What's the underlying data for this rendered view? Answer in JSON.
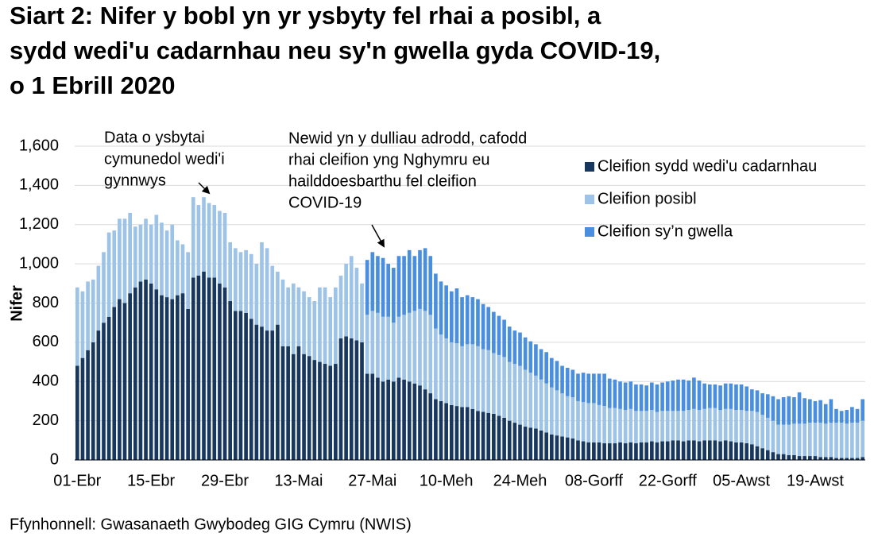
{
  "chart_data": {
    "type": "stacked-bar",
    "title": [
      "Siart 2: Nifer y bobl yn yr ysbyty fel rhai a posibl, a",
      "sydd wedi'u cadarnhau neu sy'n gwella gyda COVID-19,",
      "o 1 Ebrill 2020"
    ],
    "y_label": "Nifer",
    "source": "Ffynhonnell: Gwasanaeth Gwybodeg GIG Cymru (NWIS)",
    "annotations": [
      {
        "lines": [
          "Data o ysbytai",
          "cymunedol wedi'i",
          "gynnwys"
        ]
      },
      {
        "lines": [
          "Newid yn y dulliau adrodd, cafodd",
          "rhai cleifion yng Nghymru eu",
          "hailddoesbarthu fel cleifion",
          "COVID-19"
        ]
      }
    ],
    "categories": [
      "01-Ebr",
      null,
      null,
      null,
      null,
      null,
      null,
      null,
      null,
      null,
      null,
      null,
      null,
      null,
      "15-Ebr",
      null,
      null,
      null,
      null,
      null,
      null,
      null,
      null,
      null,
      null,
      null,
      null,
      null,
      "29-Ebr",
      null,
      null,
      null,
      null,
      null,
      null,
      null,
      null,
      null,
      null,
      null,
      null,
      null,
      "13-Mai",
      null,
      null,
      null,
      null,
      null,
      null,
      null,
      null,
      null,
      null,
      null,
      null,
      null,
      "27-Mai",
      null,
      null,
      null,
      null,
      null,
      null,
      null,
      null,
      null,
      null,
      null,
      null,
      null,
      "10-Meh",
      null,
      null,
      null,
      null,
      null,
      null,
      null,
      null,
      null,
      null,
      null,
      null,
      null,
      "24-Meh",
      null,
      null,
      null,
      null,
      null,
      null,
      null,
      null,
      null,
      null,
      null,
      null,
      null,
      "08-Gorff",
      null,
      null,
      null,
      null,
      null,
      null,
      null,
      null,
      null,
      null,
      null,
      null,
      null,
      "22-Gorff",
      null,
      null,
      null,
      null,
      null,
      null,
      null,
      null,
      null,
      null,
      null,
      null,
      null,
      "05-Awst",
      null,
      null,
      null,
      null,
      null,
      null,
      null,
      null,
      null,
      null,
      null,
      null,
      null,
      "19-Awst",
      null,
      null,
      null,
      null,
      null,
      null,
      null,
      null,
      null
    ],
    "series": [
      {
        "name": "Cleifion sydd wedi'u cadarnhau",
        "color": "#17375e",
        "values": [
          480,
          520,
          560,
          600,
          660,
          700,
          730,
          780,
          820,
          800,
          850,
          880,
          910,
          920,
          900,
          870,
          840,
          830,
          820,
          840,
          850,
          770,
          930,
          940,
          960,
          930,
          930,
          900,
          880,
          810,
          760,
          760,
          750,
          720,
          690,
          680,
          660,
          660,
          690,
          580,
          580,
          540,
          580,
          540,
          530,
          510,
          500,
          490,
          480,
          490,
          620,
          630,
          620,
          610,
          600,
          440,
          440,
          420,
          400,
          410,
          400,
          420,
          410,
          400,
          390,
          380,
          360,
          340,
          310,
          300,
          290,
          280,
          275,
          270,
          270,
          260,
          250,
          245,
          240,
          235,
          225,
          215,
          200,
          190,
          180,
          170,
          165,
          160,
          150,
          140,
          130,
          125,
          120,
          115,
          110,
          100,
          95,
          90,
          90,
          90,
          85,
          85,
          85,
          90,
          85,
          90,
          85,
          90,
          90,
          95,
          90,
          95,
          95,
          100,
          100,
          95,
          100,
          100,
          95,
          100,
          100,
          100,
          95,
          100,
          95,
          90,
          90,
          85,
          80,
          70,
          60,
          50,
          40,
          30,
          30,
          25,
          25,
          20,
          20,
          20,
          20,
          15,
          15,
          15,
          10,
          10,
          10,
          10,
          10,
          15
        ]
      },
      {
        "name": "Cleifion posibl",
        "color": "#9dc3e6",
        "values": [
          400,
          340,
          350,
          320,
          330,
          360,
          430,
          390,
          410,
          430,
          410,
          310,
          290,
          310,
          300,
          380,
          370,
          340,
          380,
          280,
          250,
          290,
          410,
          360,
          380,
          380,
          370,
          370,
          380,
          300,
          320,
          300,
          320,
          330,
          310,
          430,
          420,
          330,
          270,
          340,
          300,
          360,
          300,
          320,
          300,
          300,
          380,
          390,
          350,
          390,
          320,
          370,
          420,
          370,
          300,
          300,
          320,
          330,
          330,
          320,
          300,
          310,
          330,
          350,
          370,
          390,
          400,
          400,
          360,
          340,
          330,
          320,
          320,
          310,
          320,
          330,
          330,
          320,
          320,
          310,
          310,
          310,
          300,
          300,
          300,
          290,
          280,
          270,
          260,
          250,
          240,
          230,
          220,
          210,
          210,
          200,
          200,
          200,
          200,
          190,
          190,
          180,
          180,
          170,
          170,
          170,
          165,
          160,
          160,
          160,
          155,
          155,
          155,
          150,
          150,
          155,
          155,
          160,
          160,
          160,
          165,
          165,
          160,
          160,
          165,
          165,
          165,
          165,
          170,
          175,
          170,
          165,
          160,
          150,
          150,
          155,
          160,
          165,
          165,
          170,
          170,
          175,
          170,
          175,
          180,
          180,
          175,
          180,
          180,
          185
        ]
      },
      {
        "name": "Cleifion sy’n gwella",
        "color": "#4a8fdf",
        "values": [
          null,
          null,
          null,
          null,
          null,
          null,
          null,
          null,
          null,
          null,
          null,
          null,
          null,
          null,
          null,
          null,
          null,
          null,
          null,
          null,
          null,
          null,
          null,
          null,
          null,
          null,
          null,
          null,
          null,
          null,
          null,
          null,
          null,
          null,
          null,
          null,
          null,
          null,
          null,
          null,
          null,
          null,
          null,
          null,
          null,
          null,
          null,
          null,
          null,
          null,
          null,
          null,
          null,
          null,
          null,
          280,
          300,
          290,
          300,
          270,
          280,
          310,
          300,
          320,
          280,
          300,
          320,
          300,
          280,
          270,
          270,
          260,
          280,
          250,
          250,
          240,
          240,
          230,
          220,
          210,
          200,
          190,
          180,
          170,
          170,
          165,
          160,
          160,
          155,
          160,
          150,
          150,
          140,
          145,
          140,
          140,
          150,
          150,
          150,
          160,
          165,
          150,
          145,
          140,
          140,
          140,
          135,
          135,
          130,
          140,
          140,
          145,
          150,
          155,
          160,
          160,
          150,
          160,
          150,
          130,
          120,
          120,
          125,
          130,
          130,
          130,
          130,
          125,
          110,
          110,
          110,
          120,
          125,
          130,
          140,
          145,
          135,
          160,
          130,
          120,
          110,
          115,
          100,
          120,
          70,
          60,
          70,
          80,
          70,
          110
        ]
      }
    ],
    "ylim": [
      0,
      1600
    ],
    "yticks": [
      0,
      200,
      400,
      600,
      800,
      {
        "value": 1000,
        "label": "1,000"
      },
      {
        "value": 1200,
        "label": "1,200"
      },
      {
        "value": 1400,
        "label": "1,400"
      },
      {
        "value": 1600,
        "label": "1,600"
      }
    ],
    "grid": true,
    "legend": "top-right"
  }
}
